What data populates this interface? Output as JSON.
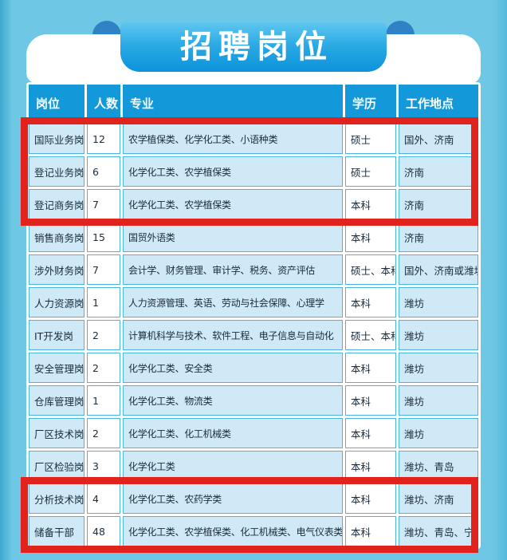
{
  "banner": {
    "title": "招聘岗位"
  },
  "colors": {
    "background": "#6ec8e5",
    "ribbon_top": "#5ec7f0",
    "ribbon_bottom": "#0d92da",
    "ribbon_fold": "#2e82c5",
    "header_cell": "#1399da",
    "tinted_cell": "#cfe9f7",
    "cell_border": "#49b5e5",
    "highlight_red": "#e1231d"
  },
  "table": {
    "columns": [
      "岗位",
      "人数",
      "专业",
      "学历",
      "工作地点"
    ],
    "column_keys": [
      "position",
      "headcount",
      "major",
      "education",
      "location"
    ],
    "rows": [
      {
        "highlighted": true,
        "cells": [
          "国际业务岗",
          "12",
          "农学植保类、化学化工类、小语种类",
          "硕士",
          "国外、济南"
        ]
      },
      {
        "highlighted": true,
        "cells": [
          "登记业务岗",
          "6",
          "化学化工类、农学植保类",
          "硕士",
          "济南"
        ]
      },
      {
        "highlighted": true,
        "cells": [
          "登记商务岗",
          "7",
          "化学化工类、农学植保类",
          "本科",
          "济南"
        ]
      },
      {
        "highlighted": false,
        "cells": [
          "销售商务岗",
          "15",
          "国贸外语类",
          "本科",
          "济南"
        ]
      },
      {
        "highlighted": false,
        "cells": [
          "涉外财务岗",
          "7",
          "会计学、财务管理、审计学、税务、资产评估",
          "硕士、本科",
          "国外、济南或潍坊"
        ]
      },
      {
        "highlighted": false,
        "cells": [
          "人力资源岗",
          "1",
          "人力资源管理、英语、劳动与社会保障、心理学",
          "本科",
          "潍坊"
        ]
      },
      {
        "highlighted": false,
        "cells": [
          "IT开发岗",
          "2",
          "计算机科学与技术、软件工程、电子信息与自动化",
          "硕士、本科",
          "潍坊"
        ]
      },
      {
        "highlighted": false,
        "cells": [
          "安全管理岗",
          "2",
          "化学化工类、安全类",
          "本科",
          "潍坊"
        ]
      },
      {
        "highlighted": false,
        "cells": [
          "仓库管理岗",
          "1",
          "化学化工类、物流类",
          "本科",
          "潍坊"
        ]
      },
      {
        "highlighted": false,
        "cells": [
          "厂区技术岗",
          "2",
          "化学化工类、化工机械类",
          "本科",
          "潍坊"
        ]
      },
      {
        "highlighted": false,
        "cells": [
          "厂区检验岗",
          "3",
          "化学化工类",
          "本科",
          "潍坊、青岛"
        ]
      },
      {
        "highlighted": true,
        "cells": [
          "分析技术岗",
          "4",
          "化学化工类、农药学类",
          "本科",
          "潍坊、济南"
        ]
      },
      {
        "highlighted": true,
        "cells": [
          "储备干部",
          "48",
          "化学化工类、农学植保类、化工机械类、电气仪表类",
          "本科",
          "潍坊、青岛、宁夏"
        ]
      }
    ],
    "highlighted_row_groups": [
      "1-3",
      "12-13"
    ]
  }
}
